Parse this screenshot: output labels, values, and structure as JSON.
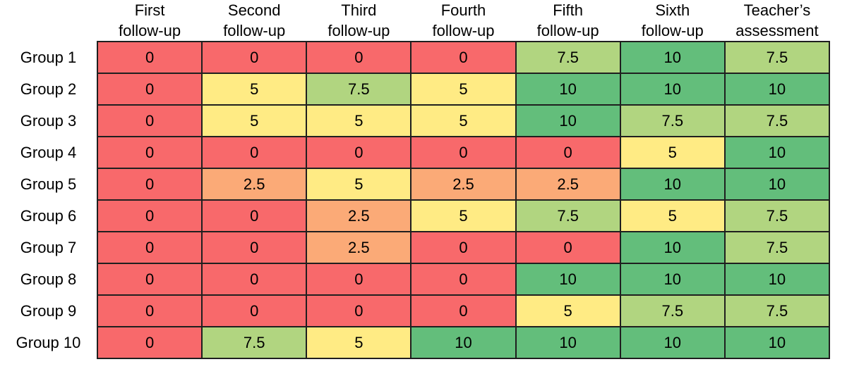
{
  "figure": {
    "background": "#FFFFFF"
  },
  "chart_data": {
    "type": "heatmap",
    "title": "",
    "columns": [
      "First\nfollow-up",
      "Second\nfollow-up",
      "Third\nfollow-up",
      "Fourth\nfollow-up",
      "Fifth\nfollow-up",
      "Sixth\nfollow-up",
      "Teacher’s\nassessment"
    ],
    "rows": [
      "Group 1",
      "Group 2",
      "Group 3",
      "Group 4",
      "Group 5",
      "Group 6",
      "Group 7",
      "Group 8",
      "Group 9",
      "Group 10"
    ],
    "values": [
      [
        0,
        0,
        0,
        0,
        7.5,
        10,
        7.5
      ],
      [
        0,
        5,
        7.5,
        5,
        10,
        10,
        10
      ],
      [
        0,
        5,
        5,
        5,
        10,
        7.5,
        7.5
      ],
      [
        0,
        0,
        0,
        0,
        0,
        5,
        10
      ],
      [
        0,
        2.5,
        5,
        2.5,
        2.5,
        10,
        10
      ],
      [
        0,
        0,
        2.5,
        5,
        7.5,
        5,
        7.5
      ],
      [
        0,
        0,
        2.5,
        0,
        0,
        10,
        7.5
      ],
      [
        0,
        0,
        0,
        0,
        10,
        10,
        10
      ],
      [
        0,
        0,
        0,
        0,
        5,
        7.5,
        7.5
      ],
      [
        0,
        7.5,
        5,
        10,
        10,
        10,
        10
      ]
    ],
    "value_range": [
      0,
      10
    ],
    "color_scale": {
      "0": "#F8696B",
      "2.5": "#FBAA77",
      "5": "#FFEB84",
      "7.5": "#B1D580",
      "10": "#63BE7B"
    },
    "border_color": "#1F1F1F",
    "text_color": "#000000",
    "legend": "none",
    "grid": "on"
  }
}
